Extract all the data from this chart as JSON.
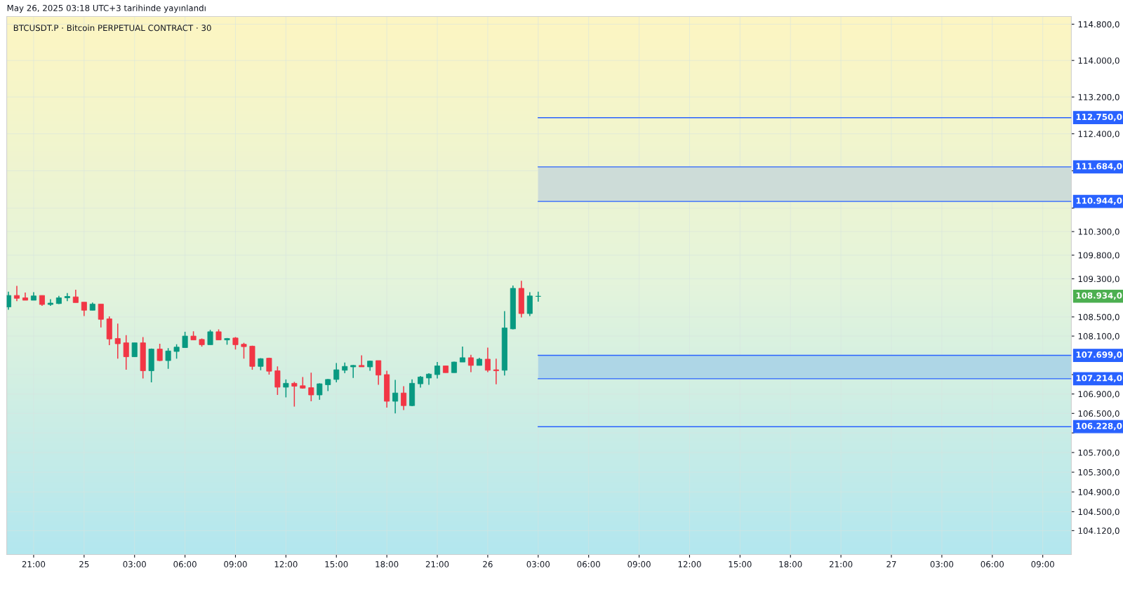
{
  "chart_data": {
    "type": "candlestick",
    "title": "BTCUSDT.P · Bitcoin PERPETUAL CONTRACT · 30",
    "subtitle": "May 26, 2025 03:18 UTC+3 tarihinde yayınlandı",
    "x": [
      "2025-05-24T19:30",
      "2025-05-24T20:00",
      "2025-05-24T20:30",
      "2025-05-24T21:00",
      "2025-05-24T21:30",
      "2025-05-24T22:00",
      "2025-05-24T22:30",
      "2025-05-24T23:00",
      "2025-05-24T23:30",
      "2025-05-25T00:00",
      "2025-05-25T00:30",
      "2025-05-25T01:00",
      "2025-05-25T01:30",
      "2025-05-25T02:00",
      "2025-05-25T02:30",
      "2025-05-25T03:00",
      "2025-05-25T03:30",
      "2025-05-25T04:00",
      "2025-05-25T04:30",
      "2025-05-25T05:00",
      "2025-05-25T05:30",
      "2025-05-25T06:00",
      "2025-05-25T06:30",
      "2025-05-25T07:00",
      "2025-05-25T07:30",
      "2025-05-25T08:00",
      "2025-05-25T08:30",
      "2025-05-25T09:00",
      "2025-05-25T09:30",
      "2025-05-25T10:00",
      "2025-05-25T10:30",
      "2025-05-25T11:00",
      "2025-05-25T11:30",
      "2025-05-25T12:00",
      "2025-05-25T12:30",
      "2025-05-25T13:00",
      "2025-05-25T13:30",
      "2025-05-25T14:00",
      "2025-05-25T14:30",
      "2025-05-25T15:00",
      "2025-05-25T15:30",
      "2025-05-25T16:00",
      "2025-05-25T16:30",
      "2025-05-25T17:00",
      "2025-05-25T17:30",
      "2025-05-25T18:00",
      "2025-05-25T18:30",
      "2025-05-25T19:00",
      "2025-05-25T19:30",
      "2025-05-25T20:00",
      "2025-05-25T20:30",
      "2025-05-25T21:00",
      "2025-05-25T21:30",
      "2025-05-25T22:00",
      "2025-05-25T22:30",
      "2025-05-25T23:00",
      "2025-05-25T23:30",
      "2025-05-26T00:00",
      "2025-05-26T00:30",
      "2025-05-26T01:00",
      "2025-05-26T01:30",
      "2025-05-26T02:00",
      "2025-05-26T02:30",
      "2025-05-26T03:00"
    ],
    "ohlc": [
      [
        108710,
        109030,
        108650,
        108950
      ],
      [
        108950,
        109150,
        108830,
        108890
      ],
      [
        108900,
        109010,
        108850,
        108850
      ],
      [
        108850,
        109020,
        108850,
        108940
      ],
      [
        108950,
        108950,
        108730,
        108760
      ],
      [
        108760,
        108870,
        108730,
        108790
      ],
      [
        108780,
        108940,
        108770,
        108900
      ],
      [
        108900,
        109000,
        108830,
        108930
      ],
      [
        108920,
        109070,
        108800,
        108800
      ],
      [
        108810,
        108810,
        108520,
        108640
      ],
      [
        108640,
        108800,
        108640,
        108770
      ],
      [
        108770,
        108770,
        108280,
        108450
      ],
      [
        108460,
        108510,
        107910,
        108040
      ],
      [
        108050,
        108360,
        107630,
        107940
      ],
      [
        107960,
        108120,
        107400,
        107670
      ],
      [
        107670,
        107960,
        107670,
        107960
      ],
      [
        107960,
        108080,
        107220,
        107380
      ],
      [
        107380,
        107840,
        107140,
        107830
      ],
      [
        107830,
        107940,
        107580,
        107590
      ],
      [
        107590,
        107850,
        107420,
        107790
      ],
      [
        107780,
        107930,
        107630,
        107870
      ],
      [
        107860,
        108190,
        107860,
        108100
      ],
      [
        108100,
        108200,
        108020,
        108020
      ],
      [
        108030,
        108050,
        107880,
        107920
      ],
      [
        107920,
        108230,
        107920,
        108190
      ],
      [
        108190,
        108240,
        108020,
        108020
      ],
      [
        108020,
        108060,
        107920,
        108050
      ],
      [
        108060,
        108080,
        107820,
        107920
      ],
      [
        107930,
        107960,
        107630,
        107880
      ],
      [
        107890,
        107900,
        107400,
        107470
      ],
      [
        107470,
        107640,
        107390,
        107630
      ],
      [
        107640,
        107650,
        107300,
        107370
      ],
      [
        107380,
        107470,
        106880,
        107040
      ],
      [
        107040,
        107200,
        106830,
        107120
      ],
      [
        107120,
        107150,
        106640,
        107060
      ],
      [
        107070,
        107250,
        107010,
        107020
      ],
      [
        107030,
        107340,
        106750,
        106880
      ],
      [
        106880,
        107120,
        106780,
        107110
      ],
      [
        107090,
        107210,
        106960,
        107200
      ],
      [
        107200,
        107540,
        107140,
        107400
      ],
      [
        107390,
        107550,
        107330,
        107470
      ],
      [
        107460,
        107500,
        107230,
        107490
      ],
      [
        107490,
        107700,
        107460,
        107460
      ],
      [
        107460,
        107590,
        107380,
        107580
      ],
      [
        107590,
        107590,
        107090,
        107290
      ],
      [
        107300,
        107380,
        106620,
        106750
      ],
      [
        106750,
        107190,
        106500,
        106920
      ],
      [
        106920,
        107060,
        106570,
        106660
      ],
      [
        106660,
        107200,
        106650,
        107120
      ],
      [
        107110,
        107270,
        107030,
        107250
      ],
      [
        107230,
        107330,
        107090,
        107310
      ],
      [
        107300,
        107560,
        107220,
        107480
      ],
      [
        107480,
        107480,
        107340,
        107340
      ],
      [
        107340,
        107570,
        107340,
        107560
      ],
      [
        107560,
        107880,
        107560,
        107650
      ],
      [
        107650,
        107710,
        107350,
        107490
      ],
      [
        107490,
        107650,
        107490,
        107620
      ],
      [
        107620,
        107860,
        107350,
        107390
      ],
      [
        107400,
        107630,
        107100,
        107380
      ],
      [
        107390,
        108620,
        107280,
        108270
      ],
      [
        108250,
        109160,
        108240,
        109100
      ],
      [
        109100,
        109260,
        108490,
        108570
      ],
      [
        108570,
        109020,
        108520,
        108940
      ],
      [
        108930,
        109030,
        108820,
        108934
      ]
    ],
    "xlim": [
      "2025-05-24T19:24",
      "2025-05-27T10:42"
    ],
    "xticks": [
      {
        "value": "2025-05-24T21:00",
        "label": "21:00"
      },
      {
        "value": "2025-05-25",
        "label": "25"
      },
      {
        "value": "2025-05-25T03:00",
        "label": "03:00"
      },
      {
        "value": "2025-05-25T06:00",
        "label": "06:00"
      },
      {
        "value": "2025-05-25T09:00",
        "label": "09:00"
      },
      {
        "value": "2025-05-25T12:00",
        "label": "12:00"
      },
      {
        "value": "2025-05-25T15:00",
        "label": "15:00"
      },
      {
        "value": "2025-05-25T18:00",
        "label": "18:00"
      },
      {
        "value": "2025-05-25T21:00",
        "label": "21:00"
      },
      {
        "value": "2025-05-26",
        "label": "26"
      },
      {
        "value": "2025-05-26T03:00",
        "label": "03:00"
      },
      {
        "value": "2025-05-26T06:00",
        "label": "06:00"
      },
      {
        "value": "2025-05-26T09:00",
        "label": "09:00"
      },
      {
        "value": "2025-05-26T12:00",
        "label": "12:00"
      },
      {
        "value": "2025-05-26T15:00",
        "label": "15:00"
      },
      {
        "value": "2025-05-26T18:00",
        "label": "18:00"
      },
      {
        "value": "2025-05-26T21:00",
        "label": "21:00"
      },
      {
        "value": "2025-05-27",
        "label": "27"
      },
      {
        "value": "2025-05-27T03:00",
        "label": "03:00"
      },
      {
        "value": "2025-05-27T06:00",
        "label": "06:00"
      },
      {
        "value": "2025-05-27T09:00",
        "label": "09:00"
      }
    ],
    "log": true,
    "ylim": [
      103640,
      114970
    ],
    "yticks": [
      {
        "value": 114800,
        "label": "114.800,0"
      },
      {
        "value": 114000,
        "label": "114.000,0"
      },
      {
        "value": 113200,
        "label": "113.200,0"
      },
      {
        "value": 112400,
        "label": "112.400,0"
      },
      {
        "value": 111600,
        "label": null
      },
      {
        "value": 110800,
        "label": null
      },
      {
        "value": 110300,
        "label": "110.300,0"
      },
      {
        "value": 109800,
        "label": "109.800,0"
      },
      {
        "value": 109300,
        "label": "109.300,0"
      },
      {
        "value": 108500,
        "label": "108.500,0"
      },
      {
        "value": 108100,
        "label": "108.100,0"
      },
      {
        "value": 107300,
        "label": null
      },
      {
        "value": 106900,
        "label": "106.900,0"
      },
      {
        "value": 106500,
        "label": "106.500,0"
      },
      {
        "value": 106100,
        "label": null
      },
      {
        "value": 105700,
        "label": "105.700,0"
      },
      {
        "value": 105300,
        "label": "105.300,0"
      },
      {
        "value": 104900,
        "label": "104.900,0"
      },
      {
        "value": 104500,
        "label": "104.500,0"
      },
      {
        "value": 104120,
        "label": "104.120,0"
      }
    ],
    "grid": true,
    "ref_lines": [
      {
        "axis": "y",
        "value": 112750,
        "label": "112.750,0",
        "color": "#2962ff"
      },
      {
        "axis": "y",
        "value": 111684,
        "label": "111.684,0",
        "color": "#2962ff"
      },
      {
        "axis": "y",
        "value": 110944,
        "label": "110.944,0",
        "color": "#2962ff"
      },
      {
        "axis": "y",
        "value": 107699,
        "label": "107.699,0",
        "color": "#2962ff"
      },
      {
        "axis": "y",
        "value": 107214,
        "label": "107.214,0",
        "color": "#2962ff"
      },
      {
        "axis": "y",
        "value": 106228,
        "label": "106.228,0",
        "color": "#2962ff"
      }
    ],
    "bands": [
      {
        "axis": "y",
        "from": 110944,
        "to": 111684,
        "color": "#cddcd8"
      },
      {
        "axis": "y",
        "from": 107214,
        "to": 107699,
        "color": "#aed6e6"
      }
    ],
    "annotations": [
      "108.934,0"
    ]
  }
}
